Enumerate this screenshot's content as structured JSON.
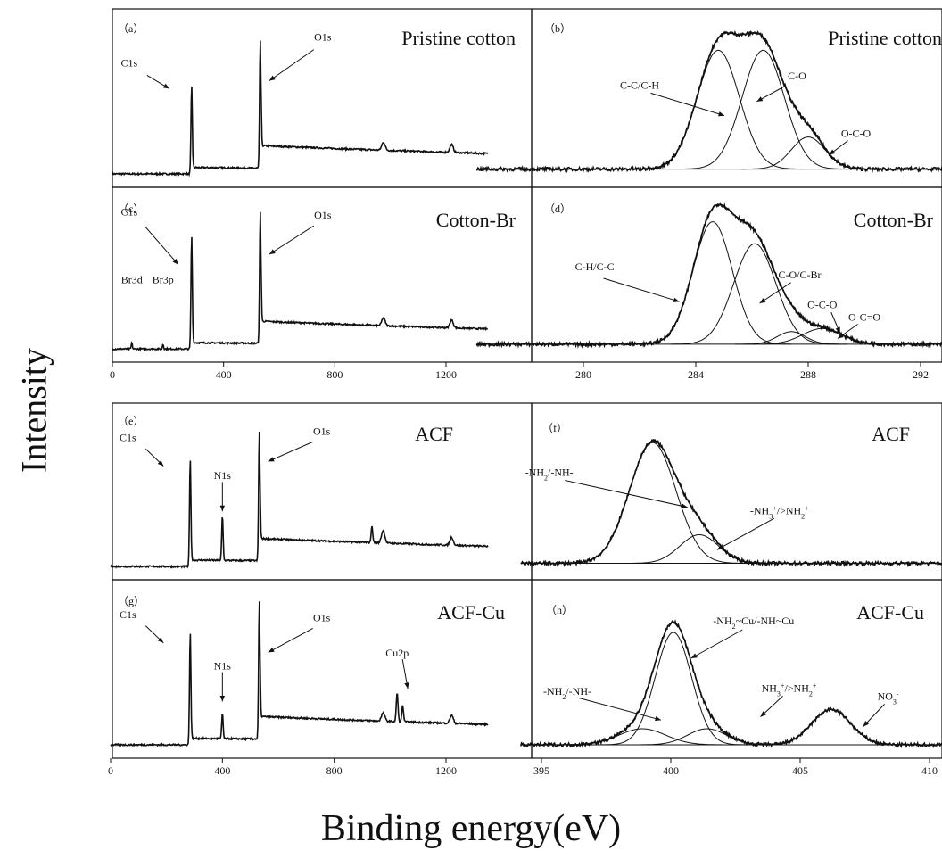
{
  "figure": {
    "ylabel": "Intensity",
    "xlabel": "Binding energy(eV)"
  },
  "chart_data": [
    {
      "id": "a",
      "type": "line",
      "panel_label": "（a）",
      "title": "Pristine cotton",
      "xlim": [
        0,
        1350
      ],
      "ylim": [
        0,
        100
      ],
      "baseline": 5,
      "bg_start": 10,
      "bg_end": 15,
      "steps": [
        {
          "x": 290,
          "h": 4
        },
        {
          "x": 535,
          "h": 14
        }
      ],
      "peaks": [
        {
          "x": 285,
          "h": 55,
          "w": 2.5
        },
        {
          "x": 532,
          "h": 80,
          "w": 2.5
        },
        {
          "x": 975,
          "h": 5,
          "w": 6
        },
        {
          "x": 1220,
          "h": 5,
          "w": 6
        }
      ],
      "annotations": [
        {
          "text": "C1s",
          "x": 285,
          "y": 60
        },
        {
          "text": "O1s",
          "x": 532,
          "y": 88
        }
      ],
      "show_xticks": false
    },
    {
      "id": "c",
      "type": "line",
      "panel_label": "（c）",
      "title": "Cotton-Br",
      "xlim": [
        0,
        1350
      ],
      "ylim": [
        0,
        100
      ],
      "baseline": 5,
      "bg_start": 10,
      "bg_end": 15,
      "steps": [
        {
          "x": 290,
          "h": 4
        },
        {
          "x": 535,
          "h": 14
        }
      ],
      "peaks": [
        {
          "x": 70,
          "h": 4,
          "w": 2
        },
        {
          "x": 182,
          "h": 3,
          "w": 2
        },
        {
          "x": 285,
          "h": 72,
          "w": 2.5
        },
        {
          "x": 532,
          "h": 84,
          "w": 2.5
        },
        {
          "x": 975,
          "h": 5,
          "w": 6
        },
        {
          "x": 1220,
          "h": 5,
          "w": 6
        }
      ],
      "annotations": [
        {
          "text": "C1s",
          "x": 285,
          "y": 78
        },
        {
          "text": "O1s",
          "x": 532,
          "y": 88
        },
        {
          "text": "Br3d",
          "x": 70,
          "y": 35
        },
        {
          "text": "Br3p",
          "x": 182,
          "y": 35
        }
      ],
      "show_xticks": true,
      "xticks": [
        0,
        400,
        800,
        1200
      ]
    },
    {
      "id": "e",
      "type": "line",
      "panel_label": "（e）",
      "title": "ACF",
      "xlim": [
        0,
        1350
      ],
      "ylim": [
        0,
        100
      ],
      "baseline": 5,
      "bg_start": 10,
      "bg_end": 15,
      "steps": [
        {
          "x": 290,
          "h": 4
        },
        {
          "x": 535,
          "h": 14
        }
      ],
      "peaks": [
        {
          "x": 285,
          "h": 68,
          "w": 2.5
        },
        {
          "x": 400,
          "h": 28,
          "w": 2.5
        },
        {
          "x": 532,
          "h": 82,
          "w": 2.5
        },
        {
          "x": 935,
          "h": 10,
          "w": 3
        },
        {
          "x": 975,
          "h": 8,
          "w": 6
        },
        {
          "x": 1220,
          "h": 5,
          "w": 6
        }
      ],
      "annotations": [
        {
          "text": "C1s",
          "x": 285,
          "y": 72
        },
        {
          "text": "N1s",
          "x": 400,
          "y": 48
        },
        {
          "text": "O1s",
          "x": 532,
          "y": 88
        }
      ],
      "show_xticks": false
    },
    {
      "id": "g",
      "type": "line",
      "panel_label": "（g）",
      "title": "ACF-Cu",
      "xlim": [
        0,
        1350
      ],
      "ylim": [
        0,
        100
      ],
      "baseline": 5,
      "bg_start": 10,
      "bg_end": 15,
      "steps": [
        {
          "x": 290,
          "h": 4
        },
        {
          "x": 535,
          "h": 14
        }
      ],
      "peaks": [
        {
          "x": 285,
          "h": 70,
          "w": 2.5
        },
        {
          "x": 400,
          "h": 16,
          "w": 2.5
        },
        {
          "x": 532,
          "h": 86,
          "w": 2.5
        },
        {
          "x": 975,
          "h": 5,
          "w": 6
        },
        {
          "x": 1025,
          "h": 18,
          "w": 3
        },
        {
          "x": 1045,
          "h": 10,
          "w": 3
        },
        {
          "x": 1220,
          "h": 5,
          "w": 6
        }
      ],
      "annotations": [
        {
          "text": "C1s",
          "x": 285,
          "y": 72
        },
        {
          "text": "N1s",
          "x": 400,
          "y": 40
        },
        {
          "text": "O1s",
          "x": 532,
          "y": 82
        },
        {
          "text": "Cu2p",
          "x": 1025,
          "y": 48
        }
      ],
      "show_xticks": true,
      "xticks": [
        0,
        400,
        800,
        1200
      ]
    },
    {
      "id": "b",
      "type": "line",
      "panel_label": "（b）",
      "title": "Pristine cotton",
      "xlim": [
        276.2,
        293.5
      ],
      "ylim": [
        0,
        100
      ],
      "baseline": 8,
      "components": [
        {
          "name": "C-C/C-H",
          "center": 284.8,
          "height": 74,
          "sigma": 0.75
        },
        {
          "name": "C-O",
          "center": 286.4,
          "height": 74,
          "sigma": 0.75
        },
        {
          "name": "O-C-O",
          "center": 288.0,
          "height": 20,
          "sigma": 0.6
        }
      ],
      "annotations": [
        {
          "text": "C-C/C-H",
          "x": 282.0,
          "y": 58
        },
        {
          "text": "C-O",
          "x": 287.6,
          "y": 64
        },
        {
          "text": "O-C-O",
          "x": 289.7,
          "y": 28
        }
      ],
      "show_xticks": false
    },
    {
      "id": "d",
      "type": "line",
      "panel_label": "（d）",
      "title": "Cotton-Br",
      "xlim": [
        276.2,
        293.5
      ],
      "ylim": [
        0,
        100
      ],
      "baseline": 8,
      "components": [
        {
          "name": "C-H/C-C",
          "center": 284.6,
          "height": 78,
          "sigma": 0.7
        },
        {
          "name": "C-O/C-Br",
          "center": 286.1,
          "height": 64,
          "sigma": 0.75
        },
        {
          "name": "O-C-O",
          "center": 287.4,
          "height": 8,
          "sigma": 0.5
        },
        {
          "name": "O-C=O",
          "center": 288.5,
          "height": 10,
          "sigma": 0.7
        }
      ],
      "annotations": [
        {
          "text": "C-H/C-C",
          "x": 280.4,
          "y": 55
        },
        {
          "text": "C-O/C-Br",
          "x": 287.7,
          "y": 50
        },
        {
          "text": "O-C-O",
          "x": 288.5,
          "y": 31
        },
        {
          "text": "O-C=O",
          "x": 290.0,
          "y": 23
        }
      ],
      "show_xticks": true,
      "xticks": [
        280,
        284,
        288,
        292
      ]
    },
    {
      "id": "f",
      "type": "line",
      "panel_label": "（f）",
      "title": "ACF",
      "xlim": [
        394.2,
        414.5
      ],
      "ylim": [
        0,
        100
      ],
      "baseline": 7,
      "components": [
        {
          "name": "-NH2/-NH-",
          "center": 399.3,
          "height": 76,
          "sigma": 0.9
        },
        {
          "name": "-NH3+/>NH2+",
          "center": 401.1,
          "height": 18,
          "sigma": 0.75
        }
      ],
      "annotations": [
        {
          "text": "-NH2/-NH-",
          "x": 395.3,
          "y": 62
        },
        {
          "text": "-NH3+/>NH2+",
          "x": 404.2,
          "y": 38
        }
      ],
      "show_xticks": false
    },
    {
      "id": "h",
      "type": "line",
      "panel_label": "（h）",
      "title": "ACF-Cu",
      "xlim": [
        394.2,
        414.5
      ],
      "ylim": [
        0,
        100
      ],
      "baseline": 5,
      "components": [
        {
          "name": "-NH2~Cu/-NH~Cu",
          "center": 400.1,
          "height": 70,
          "sigma": 0.7
        },
        {
          "name": "-NH2/-NH-",
          "center": 398.9,
          "height": 10,
          "sigma": 0.9
        },
        {
          "name": "-NH3+/>NH2+",
          "center": 401.4,
          "height": 10,
          "sigma": 0.75
        },
        {
          "name": "NO3-",
          "center": 406.2,
          "height": 22,
          "sigma": 0.75
        }
      ],
      "annotations": [
        {
          "text": "-NH2~Cu/-NH~Cu",
          "x": 403.2,
          "y": 80
        },
        {
          "text": "-NH2/-NH-",
          "x": 396.0,
          "y": 36
        },
        {
          "text": "-NH3+/>NH2+",
          "x": 404.5,
          "y": 38
        },
        {
          "text": "NO3-",
          "x": 408.4,
          "y": 33
        }
      ],
      "show_xticks": true,
      "xticks": [
        395,
        400,
        405,
        410
      ]
    }
  ]
}
